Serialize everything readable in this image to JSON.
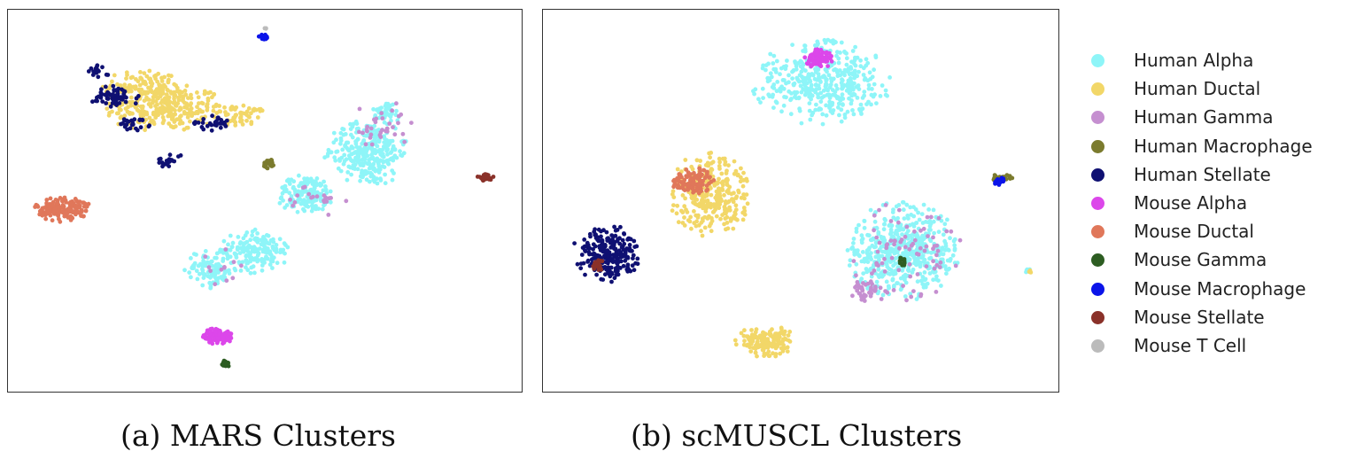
{
  "chart_data": [
    {
      "type": "scatter",
      "caption": "(a) MARS Clusters",
      "axes": "hidden",
      "xlim": [
        0,
        100
      ],
      "ylim": [
        0,
        100
      ],
      "clusters": [
        {
          "category": "Human Ductal",
          "cx": 30,
          "cy": 75,
          "rx": 12,
          "ry": 6,
          "count": 260
        },
        {
          "category": "Human Ductal",
          "cx": 26,
          "cy": 81,
          "rx": 8,
          "ry": 4,
          "count": 110
        },
        {
          "category": "Human Ductal",
          "cx": 45,
          "cy": 73,
          "rx": 5,
          "ry": 3,
          "count": 60
        },
        {
          "category": "Human Stellate",
          "cx": 20,
          "cy": 78,
          "rx": 5,
          "ry": 3,
          "count": 60
        },
        {
          "category": "Human Stellate",
          "cx": 24,
          "cy": 71,
          "rx": 3,
          "ry": 2,
          "count": 25
        },
        {
          "category": "Human Stellate",
          "cx": 39,
          "cy": 71,
          "rx": 4,
          "ry": 2,
          "count": 30
        },
        {
          "category": "Human Stellate",
          "cx": 31,
          "cy": 61,
          "rx": 3,
          "ry": 2,
          "count": 20
        },
        {
          "category": "Human Stellate",
          "cx": 17,
          "cy": 85,
          "rx": 2,
          "ry": 2,
          "count": 15
        },
        {
          "category": "Human Alpha",
          "cx": 70,
          "cy": 63,
          "rx": 8,
          "ry": 9,
          "count": 300
        },
        {
          "category": "Human Alpha",
          "cx": 58,
          "cy": 52,
          "rx": 6,
          "ry": 5,
          "count": 160
        },
        {
          "category": "Human Alpha",
          "cx": 48,
          "cy": 37,
          "rx": 7,
          "ry": 6,
          "count": 170
        },
        {
          "category": "Human Alpha",
          "cx": 39,
          "cy": 32,
          "rx": 5,
          "ry": 5,
          "count": 110
        },
        {
          "category": "Human Alpha",
          "cx": 74,
          "cy": 74,
          "rx": 3,
          "ry": 3,
          "count": 45
        },
        {
          "category": "Human Gamma",
          "cx": 73,
          "cy": 70,
          "rx": 6,
          "ry": 7,
          "count": 35
        },
        {
          "category": "Human Gamma",
          "cx": 60,
          "cy": 50,
          "rx": 6,
          "ry": 5,
          "count": 20
        },
        {
          "category": "Human Gamma",
          "cx": 44,
          "cy": 33,
          "rx": 8,
          "ry": 6,
          "count": 12
        },
        {
          "category": "Human Macrophage",
          "cx": 50.5,
          "cy": 60,
          "rx": 1.4,
          "ry": 1.4,
          "count": 22
        },
        {
          "category": "Mouse Alpha",
          "cx": 40.5,
          "cy": 14,
          "rx": 3,
          "ry": 2.1,
          "count": 120
        },
        {
          "category": "Mouse Ductal",
          "cx": 10,
          "cy": 48,
          "rx": 5.5,
          "ry": 3.4,
          "count": 170
        },
        {
          "category": "Mouse Gamma",
          "cx": 42,
          "cy": 6.5,
          "rx": 0.8,
          "ry": 1,
          "count": 20
        },
        {
          "category": "Mouse Macrophage",
          "cx": 49.5,
          "cy": 94,
          "rx": 0.9,
          "ry": 0.8,
          "count": 18
        },
        {
          "category": "Mouse Stellate",
          "cx": 93.5,
          "cy": 56.5,
          "rx": 1.6,
          "ry": 1,
          "count": 26
        },
        {
          "category": "Mouse T Cell",
          "cx": 50,
          "cy": 96.5,
          "rx": 0.3,
          "ry": 0.3,
          "count": 3
        }
      ]
    },
    {
      "type": "scatter",
      "caption": "(b) scMUSCL Clusters",
      "axes": "hidden",
      "xlim": [
        0,
        100
      ],
      "ylim": [
        0,
        100
      ],
      "clusters": [
        {
          "category": "Human Alpha",
          "cx": 54,
          "cy": 82,
          "rx": 14,
          "ry": 11,
          "count": 420
        },
        {
          "category": "Mouse Alpha",
          "cx": 53.5,
          "cy": 88.5,
          "rx": 2.8,
          "ry": 2.6,
          "count": 95
        },
        {
          "category": "Human Ductal",
          "cx": 32,
          "cy": 52,
          "rx": 8,
          "ry": 11,
          "count": 300
        },
        {
          "category": "Human Ductal",
          "cx": 43,
          "cy": 12.5,
          "rx": 6,
          "ry": 4,
          "count": 160
        },
        {
          "category": "Mouse Ductal",
          "cx": 28.5,
          "cy": 55.5,
          "rx": 4,
          "ry": 3.5,
          "count": 110
        },
        {
          "category": "Human Stellate",
          "cx": 11.5,
          "cy": 36,
          "rx": 6.5,
          "ry": 7.5,
          "count": 230
        },
        {
          "category": "Mouse Stellate",
          "cx": 10,
          "cy": 33,
          "rx": 1.3,
          "ry": 2.2,
          "count": 22
        },
        {
          "category": "Human Alpha",
          "cx": 70,
          "cy": 37,
          "rx": 11,
          "ry": 13,
          "count": 520
        },
        {
          "category": "Human Gamma",
          "cx": 70,
          "cy": 37,
          "rx": 11,
          "ry": 13,
          "count": 80
        },
        {
          "category": "Human Gamma",
          "cx": 63,
          "cy": 26,
          "rx": 4,
          "ry": 3,
          "count": 40
        },
        {
          "category": "Mouse Gamma",
          "cx": 70,
          "cy": 34,
          "rx": 0.7,
          "ry": 1.2,
          "count": 14
        },
        {
          "category": "Human Macrophage",
          "cx": 89.5,
          "cy": 56.5,
          "rx": 2.2,
          "ry": 1,
          "count": 30
        },
        {
          "category": "Mouse Macrophage",
          "cx": 89,
          "cy": 55.5,
          "rx": 1,
          "ry": 1.2,
          "count": 22
        },
        {
          "category": "Human Alpha",
          "cx": 94.5,
          "cy": 31.5,
          "rx": 0.6,
          "ry": 0.6,
          "count": 6
        },
        {
          "category": "Human Ductal",
          "cx": 95,
          "cy": 31.3,
          "rx": 0.4,
          "ry": 0.4,
          "count": 3
        }
      ]
    }
  ],
  "legend": [
    {
      "label": "Human Alpha",
      "color": "#8ef5f8"
    },
    {
      "label": "Human Ductal",
      "color": "#f2d768"
    },
    {
      "label": "Human Gamma",
      "color": "#c58fd0"
    },
    {
      "label": "Human Macrophage",
      "color": "#7b7b2e"
    },
    {
      "label": "Human Stellate",
      "color": "#0f1072"
    },
    {
      "label": "Mouse Alpha",
      "color": "#dc47ea"
    },
    {
      "label": "Mouse Ductal",
      "color": "#e0775a"
    },
    {
      "label": "Mouse Gamma",
      "color": "#2d5d22"
    },
    {
      "label": "Mouse Macrophage",
      "color": "#0b14e9"
    },
    {
      "label": "Mouse Stellate",
      "color": "#8a3129"
    },
    {
      "label": "Mouse T Cell",
      "color": "#bbbbbb"
    }
  ]
}
